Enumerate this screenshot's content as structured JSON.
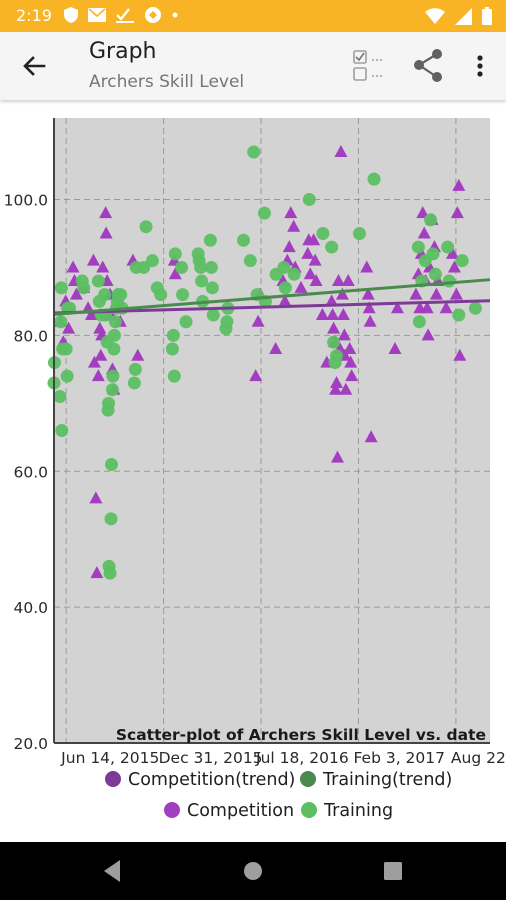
{
  "status": {
    "time": "2:19"
  },
  "app_bar": {
    "title": "Graph",
    "subtitle": "Archers Skill Level",
    "back_icon": "arrow-back-icon",
    "checklist_icon": "checklist-icon",
    "share_icon": "share-icon",
    "more_icon": "more-vert-icon"
  },
  "colors": {
    "status_bar": "#f9b426",
    "plot_bg": "#d3d3d3",
    "competition": "#a43ec0",
    "training": "#5cbf62",
    "competition_trend": "#7d3a96",
    "training_trend": "#4a8a4e"
  },
  "chart_data": {
    "type": "scatter",
    "title": "Scatter-plot of Archers Skill Level vs. date",
    "xlabel": "",
    "ylabel": "",
    "x_is_date": true,
    "xlim": [
      "2015-05-20",
      "2017-10-31"
    ],
    "ylim": [
      20,
      112
    ],
    "grid": true,
    "x_ticks": [
      {
        "date": "2015-06-14",
        "label": "Jun 14, 2015"
      },
      {
        "date": "2015-12-31",
        "label": "Dec 31, 2015"
      },
      {
        "date": "2016-07-18",
        "label": "Jul 18, 2016"
      },
      {
        "date": "2017-02-03",
        "label": "Feb 3, 2017"
      },
      {
        "date": "2017-08-22",
        "label": "Aug 22, 2017"
      }
    ],
    "y_ticks": [
      20,
      40,
      60,
      80,
      100
    ],
    "y_tick_labels": [
      "20.0",
      "40.0",
      "60.0",
      "80.0",
      "100.0"
    ],
    "legend_position": "bottom",
    "legend": [
      {
        "label": "Competition(trend)",
        "color": "#7d3a96"
      },
      {
        "label": "Training(trend)",
        "color": "#4a8a4e"
      },
      {
        "label": "Competition",
        "color": "#a43ec0"
      },
      {
        "label": "Training",
        "color": "#5cbf62"
      }
    ],
    "series": [
      {
        "name": "Competition",
        "marker": "triangle",
        "color": "#a43ec0",
        "points": [
          [
            "2015-06-03",
            82
          ],
          [
            "2015-06-08",
            79
          ],
          [
            "2015-06-13",
            85
          ],
          [
            "2015-06-19",
            81
          ],
          [
            "2015-06-28",
            90
          ],
          [
            "2015-07-01",
            88
          ],
          [
            "2015-07-05",
            86
          ],
          [
            "2015-07-20",
            87
          ],
          [
            "2015-07-29",
            84
          ],
          [
            "2015-08-05",
            83
          ],
          [
            "2015-08-09",
            91
          ],
          [
            "2015-08-11",
            76
          ],
          [
            "2015-08-14",
            56
          ],
          [
            "2015-08-16",
            45
          ],
          [
            "2015-08-19",
            74
          ],
          [
            "2015-08-22",
            81
          ],
          [
            "2015-08-24",
            77
          ],
          [
            "2015-08-26",
            80
          ],
          [
            "2015-08-28",
            90
          ],
          [
            "2015-09-03",
            98
          ],
          [
            "2015-09-04",
            95
          ],
          [
            "2015-09-06",
            88
          ],
          [
            "2015-09-12",
            86
          ],
          [
            "2015-09-14",
            83
          ],
          [
            "2015-09-17",
            75
          ],
          [
            "2015-09-20",
            72
          ],
          [
            "2015-09-26",
            86
          ],
          [
            "2015-10-03",
            82
          ],
          [
            "2015-10-29",
            91
          ],
          [
            "2015-11-08",
            77
          ],
          [
            "2016-01-22",
            91
          ],
          [
            "2016-01-24",
            89
          ],
          [
            "2016-07-07",
            74
          ],
          [
            "2016-07-12",
            82
          ],
          [
            "2016-07-16",
            86
          ],
          [
            "2016-08-17",
            78
          ],
          [
            "2016-09-01",
            88
          ],
          [
            "2016-09-05",
            85
          ],
          [
            "2016-09-10",
            91
          ],
          [
            "2016-09-14",
            93
          ],
          [
            "2016-09-17",
            98
          ],
          [
            "2016-09-23",
            96
          ],
          [
            "2016-09-26",
            90
          ],
          [
            "2016-10-08",
            87
          ],
          [
            "2016-10-22",
            92
          ],
          [
            "2016-10-24",
            94
          ],
          [
            "2016-10-27",
            89
          ],
          [
            "2016-11-03",
            94
          ],
          [
            "2016-11-06",
            91
          ],
          [
            "2016-11-08",
            88
          ],
          [
            "2016-11-21",
            83
          ],
          [
            "2016-11-30",
            76
          ],
          [
            "2016-12-10",
            85
          ],
          [
            "2016-12-12",
            83
          ],
          [
            "2016-12-14",
            81
          ],
          [
            "2016-12-16",
            79
          ],
          [
            "2016-12-18",
            72
          ],
          [
            "2016-12-20",
            73
          ],
          [
            "2016-12-22",
            62
          ],
          [
            "2016-12-24",
            88
          ],
          [
            "2016-12-27",
            78
          ],
          [
            "2016-12-29",
            107
          ],
          [
            "2017-01-01",
            86
          ],
          [
            "2017-01-03",
            83
          ],
          [
            "2017-01-05",
            80
          ],
          [
            "2017-01-06",
            77
          ],
          [
            "2017-01-08",
            72
          ],
          [
            "2017-01-13",
            88
          ],
          [
            "2017-01-16",
            78
          ],
          [
            "2017-01-18",
            76
          ],
          [
            "2017-01-20",
            74
          ],
          [
            "2017-02-20",
            90
          ],
          [
            "2017-02-23",
            86
          ],
          [
            "2017-02-25",
            84
          ],
          [
            "2017-02-27",
            82
          ],
          [
            "2017-03-01",
            65
          ],
          [
            "2017-04-19",
            78
          ],
          [
            "2017-04-24",
            84
          ],
          [
            "2017-06-01",
            86
          ],
          [
            "2017-06-06",
            89
          ],
          [
            "2017-06-09",
            84
          ],
          [
            "2017-06-12",
            92
          ],
          [
            "2017-06-15",
            98
          ],
          [
            "2017-06-18",
            95
          ],
          [
            "2017-06-21",
            88
          ],
          [
            "2017-06-24",
            84
          ],
          [
            "2017-06-26",
            80
          ],
          [
            "2017-06-29",
            90
          ],
          [
            "2017-07-04",
            97
          ],
          [
            "2017-07-09",
            93
          ],
          [
            "2017-07-13",
            86
          ],
          [
            "2017-07-16",
            88
          ],
          [
            "2017-08-02",
            84
          ],
          [
            "2017-08-15",
            92
          ],
          [
            "2017-08-19",
            90
          ],
          [
            "2017-08-23",
            86
          ],
          [
            "2017-08-25",
            98
          ],
          [
            "2017-08-28",
            102
          ],
          [
            "2017-08-30",
            77
          ]
        ]
      },
      {
        "name": "Training",
        "marker": "circle",
        "color": "#5cbf62",
        "points": [
          [
            "2015-05-20",
            73
          ],
          [
            "2015-05-21",
            76
          ],
          [
            "2015-06-01",
            71
          ],
          [
            "2015-06-03",
            82
          ],
          [
            "2015-06-04",
            87
          ],
          [
            "2015-06-05",
            66
          ],
          [
            "2015-06-07",
            78
          ],
          [
            "2015-06-14",
            78
          ],
          [
            "2015-06-16",
            74
          ],
          [
            "2015-06-17",
            84
          ],
          [
            "2015-06-21",
            84
          ],
          [
            "2015-07-17",
            88
          ],
          [
            "2015-07-20",
            87
          ],
          [
            "2015-08-19",
            88
          ],
          [
            "2015-08-21",
            85
          ],
          [
            "2015-08-25",
            83
          ],
          [
            "2015-09-01",
            86
          ],
          [
            "2015-09-03",
            83
          ],
          [
            "2015-09-06",
            79
          ],
          [
            "2015-09-08",
            69
          ],
          [
            "2015-09-09",
            70
          ],
          [
            "2015-09-10",
            46
          ],
          [
            "2015-09-12",
            45
          ],
          [
            "2015-09-14",
            53
          ],
          [
            "2015-09-15",
            61
          ],
          [
            "2015-09-17",
            72
          ],
          [
            "2015-09-18",
            74
          ],
          [
            "2015-09-20",
            78
          ],
          [
            "2015-09-21",
            80
          ],
          [
            "2015-09-23",
            82
          ],
          [
            "2015-09-25",
            84
          ],
          [
            "2015-09-27",
            85
          ],
          [
            "2015-09-29",
            86
          ],
          [
            "2015-10-04",
            86
          ],
          [
            "2015-10-07",
            84
          ],
          [
            "2015-11-01",
            73
          ],
          [
            "2015-11-03",
            75
          ],
          [
            "2015-11-05",
            90
          ],
          [
            "2015-11-20",
            90
          ],
          [
            "2015-11-25",
            96
          ],
          [
            "2015-12-08",
            91
          ],
          [
            "2015-12-18",
            87
          ],
          [
            "2015-12-25",
            86
          ],
          [
            "2016-01-18",
            78
          ],
          [
            "2016-01-20",
            80
          ],
          [
            "2016-01-22",
            74
          ],
          [
            "2016-01-24",
            92
          ],
          [
            "2016-02-06",
            90
          ],
          [
            "2016-02-08",
            86
          ],
          [
            "2016-02-15",
            82
          ],
          [
            "2016-03-11",
            92
          ],
          [
            "2016-03-13",
            91
          ],
          [
            "2016-03-16",
            90
          ],
          [
            "2016-03-18",
            88
          ],
          [
            "2016-03-20",
            85
          ],
          [
            "2016-04-05",
            94
          ],
          [
            "2016-04-07",
            90
          ],
          [
            "2016-04-09",
            87
          ],
          [
            "2016-04-11",
            83
          ],
          [
            "2016-05-07",
            81
          ],
          [
            "2016-05-09",
            82
          ],
          [
            "2016-05-11",
            84
          ],
          [
            "2016-06-12",
            94
          ],
          [
            "2016-06-26",
            91
          ],
          [
            "2016-07-03",
            107
          ],
          [
            "2016-07-10",
            86
          ],
          [
            "2016-07-25",
            98
          ],
          [
            "2016-07-27",
            85
          ],
          [
            "2016-08-18",
            89
          ],
          [
            "2016-09-03",
            90
          ],
          [
            "2016-09-06",
            87
          ],
          [
            "2016-09-24",
            89
          ],
          [
            "2016-10-25",
            100
          ],
          [
            "2016-11-22",
            95
          ],
          [
            "2016-12-10",
            93
          ],
          [
            "2016-12-14",
            79
          ],
          [
            "2016-12-17",
            76
          ],
          [
            "2016-12-20",
            77
          ],
          [
            "2017-02-05",
            95
          ],
          [
            "2017-03-07",
            103
          ],
          [
            "2017-06-06",
            93
          ],
          [
            "2017-06-08",
            82
          ],
          [
            "2017-06-13",
            88
          ],
          [
            "2017-06-20",
            91
          ],
          [
            "2017-07-01",
            97
          ],
          [
            "2017-07-06",
            92
          ],
          [
            "2017-07-11",
            89
          ],
          [
            "2017-08-05",
            93
          ],
          [
            "2017-08-08",
            88
          ],
          [
            "2017-08-28",
            83
          ],
          [
            "2017-09-04",
            91
          ],
          [
            "2017-10-01",
            84
          ]
        ]
      },
      {
        "name": "Competition(trend)",
        "type": "line",
        "color": "#7d3a96",
        "points": [
          [
            "2015-05-20",
            83.3
          ],
          [
            "2017-10-31",
            85.1
          ]
        ]
      },
      {
        "name": "Training(trend)",
        "type": "line",
        "color": "#4a8a4e",
        "points": [
          [
            "2015-05-20",
            83.1
          ],
          [
            "2017-10-31",
            88.2
          ]
        ]
      }
    ]
  }
}
